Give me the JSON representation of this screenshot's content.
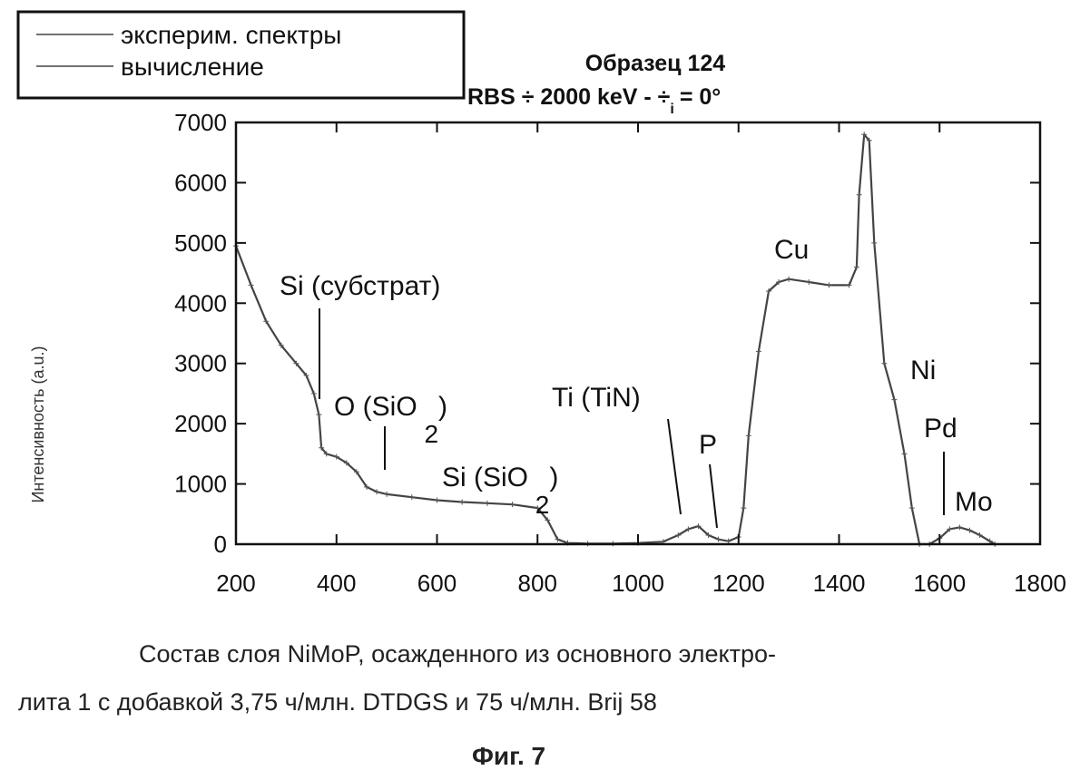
{
  "chart_data": {
    "type": "line",
    "title": "Образец 124",
    "subtitle": "RBS ÷ 2000 keV -  ÷",
    "subtitle_sub": "i",
    "subtitle_tail": "= 0°",
    "xlabel": "",
    "ylabel": "Интенсивность (a.u.)",
    "xlim": [
      200,
      1800
    ],
    "ylim": [
      0,
      7000
    ],
    "xticks": [
      "200",
      "400",
      "600",
      "800",
      "1000",
      "1200",
      "1400",
      "1600",
      "1800"
    ],
    "yticks": [
      "0",
      "1000",
      "2000",
      "3000",
      "4000",
      "5000",
      "6000",
      "7000"
    ],
    "legend": {
      "position": "top-left",
      "entries": [
        "эксперим. спектры",
        "вычисление"
      ]
    },
    "series": [
      {
        "name": "эксперим. спектры",
        "x": [
          200,
          230,
          260,
          290,
          320,
          340,
          355,
          365,
          370,
          380,
          400,
          420,
          440,
          460,
          480,
          500,
          550,
          600,
          650,
          700,
          750,
          800,
          820,
          840,
          860,
          900,
          950,
          1000,
          1050,
          1080,
          1100,
          1120,
          1140,
          1160,
          1180,
          1200,
          1210,
          1220,
          1240,
          1260,
          1280,
          1300,
          1340,
          1380,
          1420,
          1435,
          1440,
          1450,
          1460,
          1470,
          1490,
          1510,
          1530,
          1545,
          1560,
          1580,
          1600,
          1620,
          1640,
          1660,
          1680,
          1700,
          1710
        ],
        "y": [
          4950,
          4300,
          3700,
          3300,
          3000,
          2800,
          2500,
          2150,
          1600,
          1500,
          1450,
          1350,
          1200,
          950,
          870,
          830,
          780,
          730,
          700,
          680,
          660,
          600,
          400,
          80,
          20,
          10,
          10,
          20,
          40,
          150,
          250,
          300,
          150,
          80,
          50,
          120,
          600,
          1800,
          3200,
          4200,
          4350,
          4400,
          4350,
          4300,
          4300,
          4600,
          5800,
          6800,
          6700,
          5000,
          3000,
          2400,
          1500,
          600,
          0,
          0,
          100,
          250,
          280,
          230,
          150,
          50,
          0
        ]
      }
    ],
    "annotations": [
      {
        "text": "Si (субстрат)",
        "x": 370,
        "y": 2450
      },
      {
        "text": "O (SiO",
        "sub": "2",
        "tail": ")",
        "x": 500,
        "y": 1150
      },
      {
        "text": "Si (SiO",
        "sub": "2",
        "tail": ")",
        "x": 830,
        "y": 40
      },
      {
        "text": "Ti (TiN)",
        "x": 1100,
        "y": 500
      },
      {
        "text": "P",
        "x": 1170,
        "y": 250
      },
      {
        "text": "Cu",
        "x": 1320,
        "y": 4600
      },
      {
        "text": "Ni",
        "x": 1540,
        "y": 2700
      },
      {
        "text": "Pd",
        "x": 1630,
        "y": 350
      },
      {
        "text": "Mo",
        "x": 1690,
        "y": 250
      }
    ]
  },
  "caption": {
    "line1": "Состав слоя NiMoP, осажденного из основного электро-",
    "line2": "лита 1 с добавкой 3,75 ч/млн. DTDGS и 75 ч/млн. Brij 58",
    "figure": "Фиг. 7"
  }
}
